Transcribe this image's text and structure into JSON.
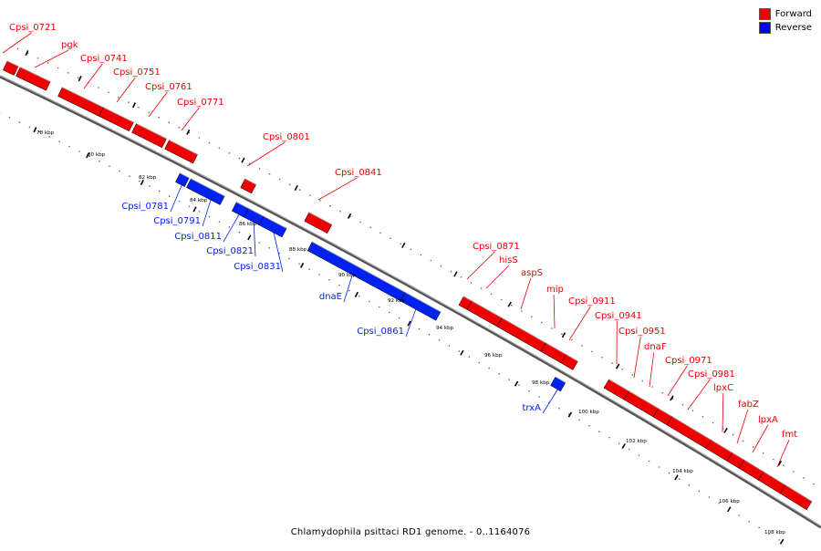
{
  "caption": "Chlamydophila psittaci RD1 genome. - 0..1164076",
  "legend": [
    {
      "label": "Forward",
      "color": "#ee0000"
    },
    {
      "label": "Reverse",
      "color": "#0000ee"
    }
  ],
  "colors": {
    "forward": "#ee0000",
    "reverse": "#0022ee",
    "backbone": "#777777"
  },
  "kbp_labels": [
    "78 kbp",
    "80 kbp",
    "82 kbp",
    "84 kbp",
    "86 kbp",
    "88 kbp",
    "90 kbp",
    "92 kbp",
    "94 kbp",
    "96 kbp",
    "98 kbp",
    "100 kbp",
    "102 kbp",
    "104 kbp",
    "106 kbp",
    "108 kbp"
  ],
  "genes": [
    {
      "name": "Cpsi_0721",
      "strand": "forward"
    },
    {
      "name": "pgk",
      "strand": "forward"
    },
    {
      "name": "Cpsi_0741",
      "strand": "forward"
    },
    {
      "name": "Cpsi_0751",
      "strand": "forward"
    },
    {
      "name": "Cpsi_0761",
      "strand": "forward"
    },
    {
      "name": "Cpsi_0771",
      "strand": "forward"
    },
    {
      "name": "Cpsi_0781",
      "strand": "reverse"
    },
    {
      "name": "Cpsi_0791",
      "strand": "reverse"
    },
    {
      "name": "Cpsi_0801",
      "strand": "forward"
    },
    {
      "name": "Cpsi_0811",
      "strand": "reverse"
    },
    {
      "name": "Cpsi_0821",
      "strand": "reverse"
    },
    {
      "name": "Cpsi_0831",
      "strand": "reverse"
    },
    {
      "name": "Cpsi_0841",
      "strand": "forward"
    },
    {
      "name": "dnaE",
      "strand": "reverse"
    },
    {
      "name": "Cpsi_0861",
      "strand": "reverse"
    },
    {
      "name": "Cpsi_0871",
      "strand": "forward"
    },
    {
      "name": "hisS",
      "strand": "forward"
    },
    {
      "name": "aspS",
      "strand": "forward"
    },
    {
      "name": "mip",
      "strand": "forward"
    },
    {
      "name": "Cpsi_0911",
      "strand": "forward"
    },
    {
      "name": "trxA",
      "strand": "reverse"
    },
    {
      "name": "Cpsi_0941",
      "strand": "forward"
    },
    {
      "name": "Cpsi_0951",
      "strand": "forward"
    },
    {
      "name": "dnaF",
      "strand": "forward"
    },
    {
      "name": "Cpsi_0971",
      "strand": "forward"
    },
    {
      "name": "Cpsi_0981",
      "strand": "forward"
    },
    {
      "name": "lpxC",
      "strand": "forward"
    },
    {
      "name": "fabZ",
      "strand": "forward"
    },
    {
      "name": "lpxA",
      "strand": "forward"
    },
    {
      "name": "fmt",
      "strand": "forward"
    }
  ]
}
